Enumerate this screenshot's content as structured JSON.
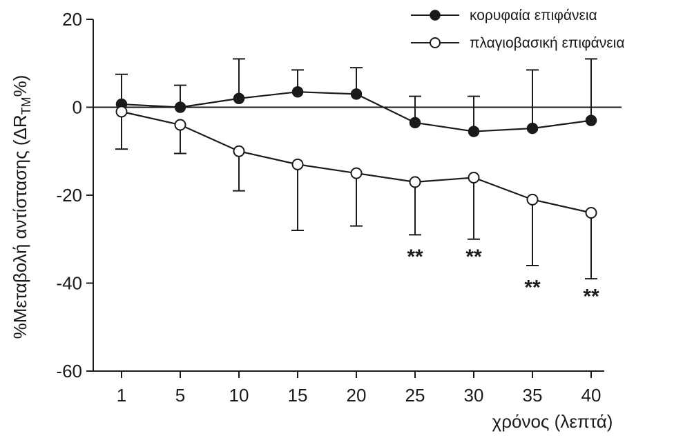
{
  "chart_data": {
    "type": "line",
    "categories": [
      "1",
      "5",
      "10",
      "15",
      "20",
      "25",
      "30",
      "35",
      "40"
    ],
    "xlabel": "χρόνος (λεπτά)",
    "ylabel": "%Μεταβολή αντίστασης (ΔR",
    "ylabel_sub": "TM",
    "ylabel_end": "%)",
    "ylim": [
      -60,
      20
    ],
    "yticks": [
      "20",
      "0",
      "-20",
      "-40",
      "-60"
    ],
    "ytick_values": [
      20,
      0,
      -20,
      -40,
      -60
    ],
    "grid": false,
    "legend_position": "top-right",
    "reference_line": 0,
    "series": [
      {
        "name": "κορυφαία επιφάνεια",
        "marker": "filled-circle",
        "values": [
          0.7,
          0,
          2,
          3.5,
          3,
          -3.5,
          -5.5,
          -4.8,
          -3
        ],
        "error_up": [
          7.5,
          5,
          11,
          8.5,
          9,
          2.5,
          2.5,
          8.5,
          11
        ]
      },
      {
        "name": "πλαγιοβασική επιφάνεια",
        "marker": "open-circle",
        "values": [
          -1,
          -4,
          -10,
          -13,
          -15,
          -17,
          -16,
          -21,
          -24
        ],
        "error_down": [
          -9.5,
          -10.5,
          -19,
          -28,
          -27,
          -29,
          -30,
          -36,
          -39
        ]
      }
    ],
    "annotations": [
      {
        "category": "25",
        "text": "**",
        "y": -33
      },
      {
        "category": "30",
        "text": "**",
        "y": -33
      },
      {
        "category": "35",
        "text": "**",
        "y": -40
      },
      {
        "category": "40",
        "text": "**",
        "y": -42
      }
    ],
    "colors": {
      "line": "#1a1a1a",
      "background": "#ffffff"
    }
  }
}
